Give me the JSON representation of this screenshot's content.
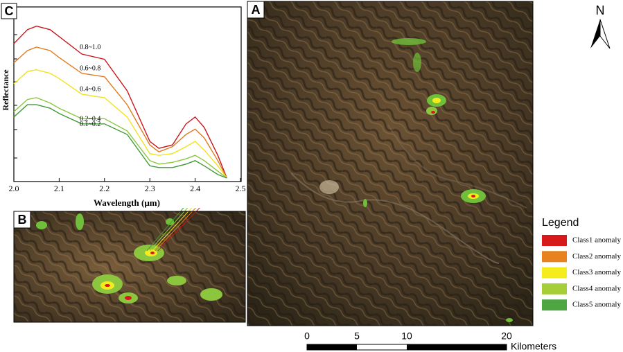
{
  "chart_data": {
    "type": "line",
    "panel": "C",
    "x_label": "Wavelength (µm)",
    "y_label": "Reflectance",
    "x": [
      2.0,
      2.03,
      2.05,
      2.08,
      2.1,
      2.15,
      2.2,
      2.25,
      2.3,
      2.32,
      2.35,
      2.38,
      2.4,
      2.42,
      2.45,
      2.47
    ],
    "series": [
      {
        "name": "0.8~1.0",
        "color": "#c8161d",
        "values": [
          0.79,
          0.87,
          0.89,
          0.87,
          0.83,
          0.73,
          0.7,
          0.52,
          0.23,
          0.19,
          0.21,
          0.33,
          0.37,
          0.31,
          0.15,
          0.02
        ]
      },
      {
        "name": "0.6~0.8",
        "color": "#e07b1f",
        "values": [
          0.68,
          0.75,
          0.77,
          0.75,
          0.71,
          0.62,
          0.6,
          0.44,
          0.21,
          0.17,
          0.2,
          0.27,
          0.3,
          0.25,
          0.12,
          0.02
        ]
      },
      {
        "name": "0.4~0.6",
        "color": "#f2e21a",
        "values": [
          0.56,
          0.63,
          0.64,
          0.62,
          0.59,
          0.5,
          0.48,
          0.37,
          0.16,
          0.15,
          0.16,
          0.2,
          0.23,
          0.18,
          0.09,
          0.02
        ]
      },
      {
        "name": "0.2~0.4",
        "color": "#8cc63e",
        "values": [
          0.4,
          0.47,
          0.48,
          0.45,
          0.42,
          0.36,
          0.36,
          0.29,
          0.12,
          0.1,
          0.11,
          0.13,
          0.15,
          0.12,
          0.06,
          0.02
        ]
      },
      {
        "name": "0.1~0.2",
        "color": "#3f9a35",
        "values": [
          0.37,
          0.44,
          0.44,
          0.42,
          0.39,
          0.33,
          0.33,
          0.27,
          0.09,
          0.08,
          0.08,
          0.1,
          0.12,
          0.09,
          0.04,
          0.02
        ]
      }
    ],
    "xlim": [
      2.0,
      2.5
    ],
    "ylim": [
      0,
      1
    ],
    "xticks": [
      {
        "value": 2.0,
        "label": "2.0"
      },
      2.1,
      2.2,
      2.3,
      2.4,
      2.5
    ]
  },
  "panels": {
    "a": "A",
    "b": "B"
  },
  "legend": {
    "title": "Legend",
    "items": [
      {
        "label": "Class1 anomaly",
        "color": "#d7191c"
      },
      {
        "label": "Class2 anomaly",
        "color": "#e8821e"
      },
      {
        "label": "Class3 anomaly",
        "color": "#f5ec1e"
      },
      {
        "label": "Class4 anomaly",
        "color": "#a6ce39"
      },
      {
        "label": "Class5 anomaly",
        "color": "#4ea643"
      }
    ]
  },
  "scale_bar": {
    "unit": "Kilometers",
    "ticks": [
      0,
      5,
      10,
      20
    ]
  },
  "north": "N"
}
